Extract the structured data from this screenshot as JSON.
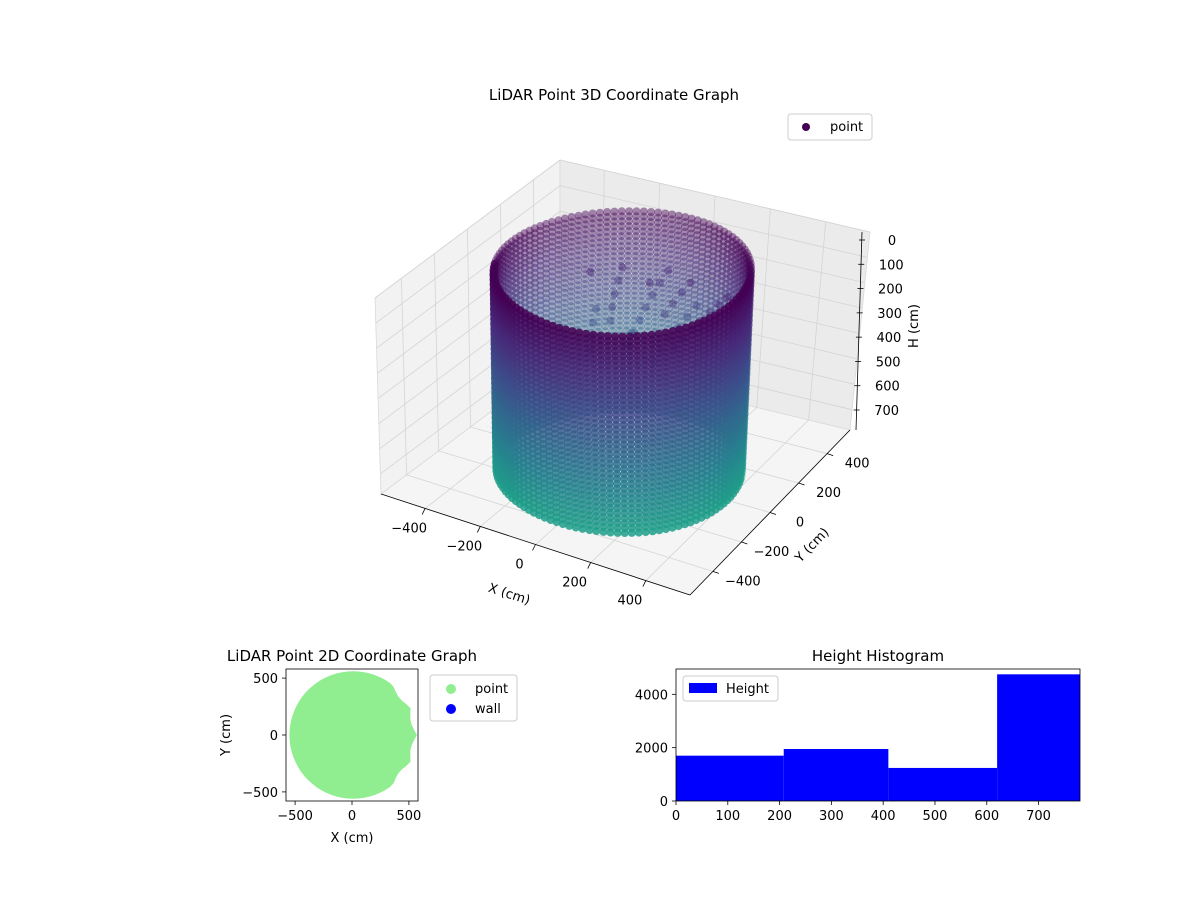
{
  "chart_data": [
    {
      "type": "scatter3d",
      "title": "LiDAR Point 3D Coordinate Graph",
      "xlabel": "X (cm)",
      "ylabel": "Y (cm)",
      "zlabel": "H (cm)",
      "xticks": [
        -400,
        -200,
        0,
        200,
        400
      ],
      "yticks": [
        -400,
        -200,
        0,
        200,
        400
      ],
      "zticks": [
        0,
        100,
        200,
        300,
        400,
        500,
        600,
        700
      ],
      "xlim": [
        -560,
        560
      ],
      "ylim": [
        -560,
        560
      ],
      "zlim": [
        0,
        780
      ],
      "z_inverted": true,
      "legend": [
        "point"
      ],
      "legend_position": "top-right",
      "colormap": "viridis",
      "marker_color": "#440154",
      "cylinder": {
        "radius": 400,
        "height": 780
      },
      "grid": true
    },
    {
      "type": "scatter",
      "title": "LiDAR Point 2D Coordinate Graph",
      "xlabel": "X (cm)",
      "ylabel": "Y (cm)",
      "xticks": [
        -500,
        0,
        500
      ],
      "yticks": [
        -500,
        0,
        500
      ],
      "xlim": [
        -580,
        580
      ],
      "ylim": [
        -580,
        580
      ],
      "series": [
        {
          "name": "point",
          "color": "#90ee90"
        },
        {
          "name": "wall",
          "color": "#0000ff"
        }
      ],
      "legend_position": "outside-right",
      "disc_radius": 560
    },
    {
      "type": "bar",
      "title": "Height Histogram",
      "xticks": [
        0,
        100,
        200,
        300,
        400,
        500,
        600,
        700
      ],
      "yticks": [
        0,
        2000,
        4000
      ],
      "xlim": [
        0,
        780
      ],
      "ylim": [
        0,
        4950
      ],
      "bins": [
        {
          "x0": 0,
          "x1": 208,
          "value": 1700
        },
        {
          "x0": 208,
          "x1": 410,
          "value": 1950
        },
        {
          "x0": 410,
          "x1": 620,
          "value": 1240
        },
        {
          "x0": 620,
          "x1": 780,
          "value": 4750
        }
      ],
      "series": [
        {
          "name": "Height",
          "color": "#0000ff"
        }
      ],
      "legend_position": "top-left"
    }
  ]
}
